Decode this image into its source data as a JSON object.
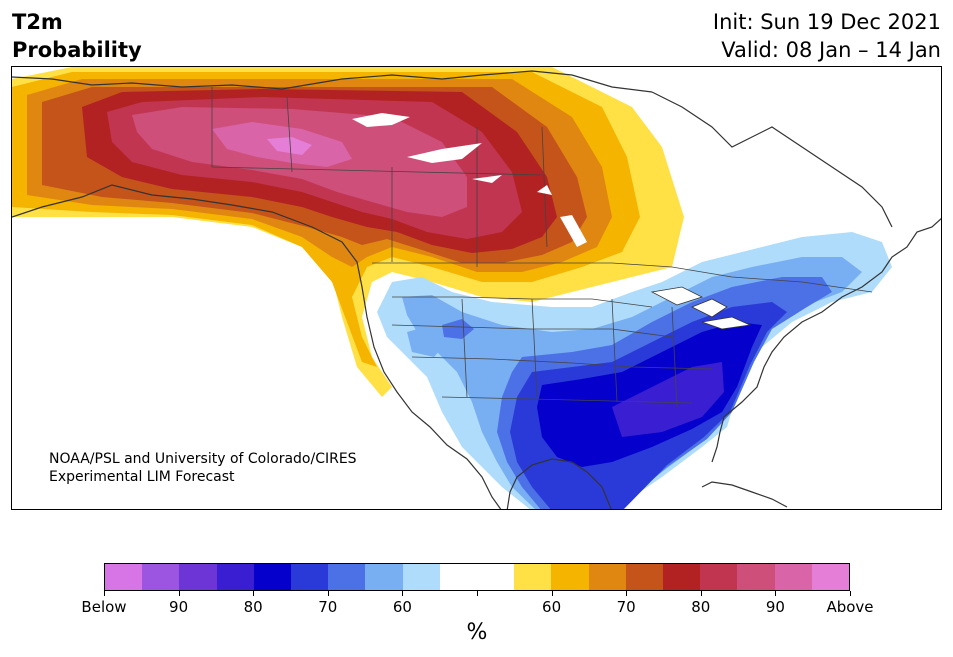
{
  "header": {
    "variable": "T2m",
    "product": "Probability",
    "init": "Init: Sun 19 Dec 2021",
    "valid": "Valid: 08 Jan – 14 Jan"
  },
  "credit": {
    "line1": "NOAA/PSL and University of Colorado/CIRES",
    "line2": "Experimental LIM Forecast"
  },
  "colorbar": {
    "unit": "%",
    "colors": [
      "#d774e6",
      "#9c55e0",
      "#6e35d6",
      "#3a1fd2",
      "#0500cc",
      "#2a3ad8",
      "#4c70e6",
      "#78aef2",
      "#afdcfb",
      "#ffffff",
      "#ffffff",
      "#ffe045",
      "#f4b400",
      "#e08712",
      "#c4541a",
      "#b22222",
      "#c13550",
      "#cd4f7a",
      "#d964a8",
      "#e57ed6"
    ],
    "labels": [
      "Below",
      "90",
      "80",
      "70",
      "60",
      "60",
      "70",
      "80",
      "90",
      "Above"
    ]
  },
  "map": {
    "region": "North America",
    "warm_colors": {
      "c50": "#ffe045",
      "c60": "#f4b400",
      "c65": "#e08712",
      "c70": "#c4541a",
      "c75": "#b22222",
      "c80": "#c13550",
      "c85": "#cd4f7a",
      "c90": "#d964a8"
    },
    "cold_colors": {
      "c50": "#afdcfb",
      "c55": "#78aef2",
      "c60": "#4c70e6",
      "c65": "#2a3ad8",
      "c70": "#0500cc",
      "c75": "#3a1fd2"
    },
    "land_line_color": "#333333"
  }
}
